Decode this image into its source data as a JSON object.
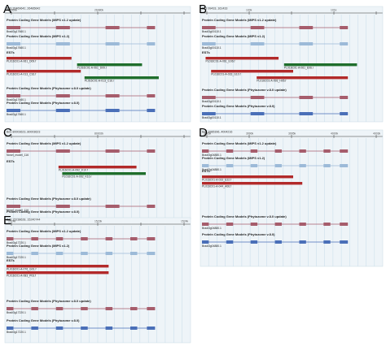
{
  "colors": {
    "panel_bg": "#eef4f8",
    "grid": "#bcd6e6",
    "gene_v12": "#a65d6c",
    "gene_v12_light": "#c89aa4",
    "gene_v12_blue": "#9cbad8",
    "gene_phy": "#4a6fb8",
    "est_red": "#b22a2a",
    "est_green": "#1f6e2c",
    "est_purple": "#8a2f8a",
    "est_blue": "#3a4aa8",
    "connector": "#555555"
  },
  "panels": [
    {
      "letter": "A",
      "coords": "Bd3 26469642..26485642",
      "ticks": [
        "26469k",
        "",
        "26480k",
        "",
        ""
      ],
      "tracks": [
        {
          "title": "Protein Coding Gene Models (MIPS v1.2 update)",
          "features": [
            {
              "label": "Bradi3g17660.1",
              "kind": "v12"
            }
          ]
        },
        {
          "title": "Protein Coding Gene Models (MIPS v1.2)",
          "features": [
            {
              "label": "Bradi3g17660.1",
              "kind": "v12b"
            }
          ]
        },
        {
          "title": "ESTs",
          "features": [
            {
              "label": "PL016C01-A-061_D09.f",
              "kind": "est_red"
            },
            {
              "label": "PL016C01-A-061_D09.r",
              "kind": "est_green"
            },
            {
              "label": "PL016C01-A-013_C16.f",
              "kind": "est_red"
            },
            {
              "label": "PL016C01-A-013_C16.r",
              "kind": "est_green"
            }
          ]
        },
        {
          "title": "Protein Coding Gene Models (Phytozome v.8.0 update)",
          "features": [
            {
              "label": "Bradi3g17660.1",
              "kind": "phy_red"
            }
          ]
        },
        {
          "title": "Protein Coding Gene Models (Phytozome v.8.0)",
          "features": [
            {
              "label": "Bradi3g17660.1",
              "kind": "phy"
            }
          ]
        }
      ]
    },
    {
      "letter": "B",
      "coords": "Bd3 99433..161433",
      "ticks": [
        "",
        "100k",
        "",
        "101k",
        ""
      ],
      "tracks": [
        {
          "title": "Protein Coding Gene Models (MIPS v1.2 update)",
          "features": [
            {
              "label": "Bradi3g00110.1",
              "kind": "v12"
            }
          ]
        },
        {
          "title": "Protein Coding Gene Models (MIPS v1.2)",
          "features": [
            {
              "label": "Bradi3g00110.1",
              "kind": "v12b"
            }
          ]
        },
        {
          "title": "ESTs",
          "features": [
            {
              "label": "PL016C01-A-061_E06.f",
              "kind": "est_red"
            },
            {
              "label": "PL016C01-A-061_E06.r",
              "kind": "est_green"
            },
            {
              "label": "PL016C01-A-033_G10.f",
              "kind": "est_red"
            },
            {
              "label": "PL016C01-A-093_H05.f",
              "kind": "est_red"
            }
          ]
        },
        {
          "title": "Protein Coding Gene Models (Phytozome v.8.0 update)",
          "features": [
            {
              "label": "Bradi3g00110.1",
              "kind": "phy_red"
            }
          ]
        },
        {
          "title": "Protein Coding Gene Models (Phytozome v.8.0)",
          "features": [
            {
              "label": "Bradi3g00110.1",
              "kind": "phy"
            }
          ]
        }
      ]
    },
    {
      "letter": "C",
      "coords": "Bd1 80003623..80003623",
      "ticks": [
        "",
        "",
        "80002k",
        "",
        ""
      ],
      "tracks": [
        {
          "title": "Protein Coding Gene Models (MIPS v1.2 update)",
          "features": [
            {
              "label": "Novel_model_116",
              "kind": "v12"
            }
          ]
        },
        {
          "title": "ESTs",
          "features": [
            {
              "label": "PL016C01-A-092_K10.f",
              "kind": "est_red"
            },
            {
              "label": "PL016C01-A-092_K10.r",
              "kind": "est_green"
            }
          ]
        },
        {
          "title": "Protein Coding Gene Models (Phytozome v.8.0 update)",
          "features": [
            {
              "label": "Novel_model_116",
              "kind": "phy_red"
            }
          ]
        },
        {
          "title": "Protein Coding Gene Models (Phytozome v.8.0)",
          "features": []
        }
      ]
    },
    {
      "letter": "D",
      "coords": "Bd3 3985396..4004216",
      "ticks": [
        "3985k",
        "3990k",
        "3995k",
        "4000k",
        "4003k"
      ],
      "tracks": [
        {
          "title": "Protein Coding Gene Models (MIPS v1.2 update)",
          "features": [
            {
              "label": "Bradi3g04880.1",
              "kind": "v12"
            }
          ]
        },
        {
          "title": "Protein Coding Gene Models (MIPS v1.2)",
          "features": [
            {
              "label": "Bradi3g04880.1",
              "kind": "v12b"
            }
          ]
        },
        {
          "title": "ESTs",
          "features": [
            {
              "label": "PL016C01-A-033_E22.f",
              "kind": "est_red"
            },
            {
              "label": "PL016C01-A-044_A06.f",
              "kind": "est_red"
            }
          ]
        },
        {
          "title": "Protein Coding Gene Models (Phytozome v.8.0 update)",
          "features": [
            {
              "label": "Bradi3g04880.1",
              "kind": "phy_red"
            }
          ]
        },
        {
          "title": "Protein Coding Gene Models (Phytozome v.8.0)",
          "features": [
            {
              "label": "Bradi3g04880.1",
              "kind": "phy"
            }
          ]
        }
      ]
    },
    {
      "letter": "E",
      "coords": "Bd3 15238628..15240744",
      "ticks": [
        "1524k",
        "",
        "1523k",
        "",
        "1524k"
      ],
      "tracks": [
        {
          "title": "Protein Coding Gene Models (MIPS v1.2 update)",
          "features": [
            {
              "label": "Bradi3g17220.1",
              "kind": "v12"
            }
          ]
        },
        {
          "title": "Protein Coding Gene Models (MIPS v1.2)",
          "features": [
            {
              "label": "Bradi3g17220.1",
              "kind": "v12b"
            }
          ]
        },
        {
          "title": "ESTs",
          "features": [
            {
              "label": "PL016C01-A-076_G01.f",
              "kind": "est_red"
            },
            {
              "label": "PL016C01-A-083_P03.f",
              "kind": "est_red"
            }
          ]
        },
        {
          "title": "Protein Coding Gene Models (Phytozome v.8.0 update)",
          "features": [
            {
              "label": "Bradi3g17220.1",
              "kind": "phy_red"
            }
          ]
        },
        {
          "title": "Protein Coding Gene Models (Phytozome v.8.0)",
          "features": [
            {
              "label": "Bradi3g17220.1",
              "kind": "phy"
            }
          ]
        }
      ]
    }
  ]
}
